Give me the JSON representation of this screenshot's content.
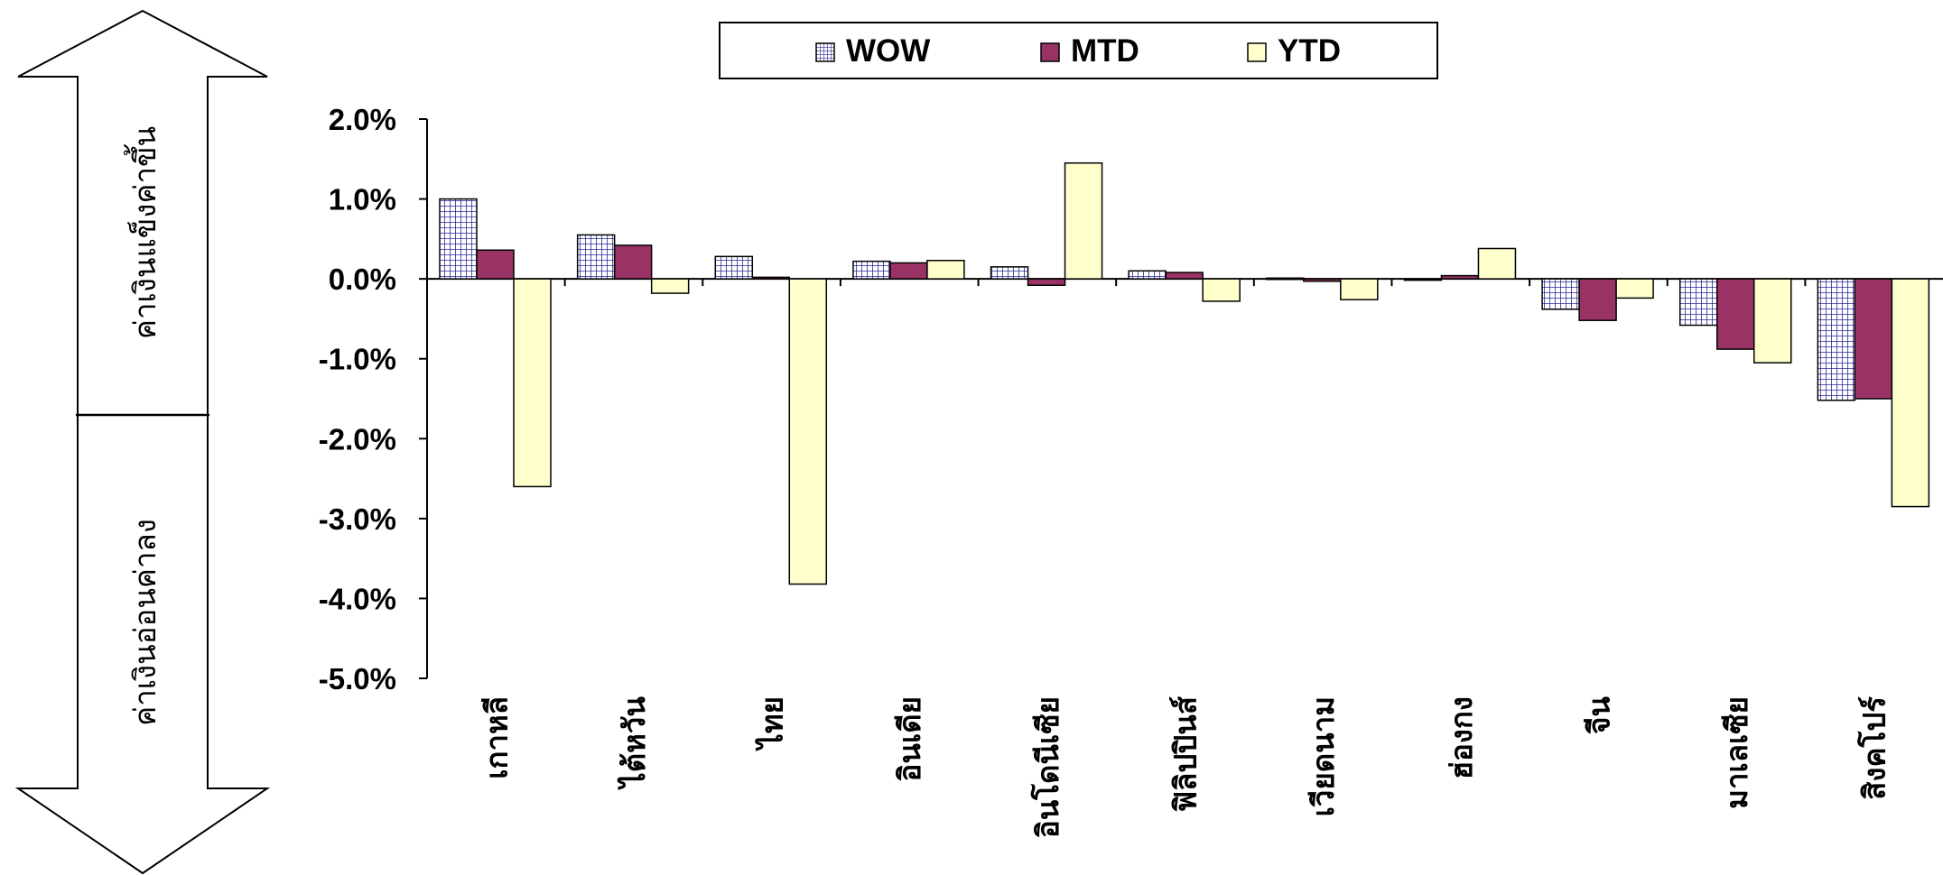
{
  "chart_data": {
    "type": "bar",
    "categories": [
      "เกาหลี",
      "ไต้หวัน",
      "ไทย",
      "อินเดีย",
      "อินโดนีเซีย",
      "ฟิลิปปินส์",
      "เวียดนาม",
      "ฮ่องกง",
      "จีน",
      "มาเลเซีย",
      "สิงคโปร์"
    ],
    "series": [
      {
        "name": "WOW",
        "values": [
          1.0,
          0.55,
          0.28,
          0.22,
          0.15,
          0.1,
          0.01,
          -0.01,
          -0.38,
          -0.58,
          -1.52
        ],
        "color": "#c8c8ff",
        "pattern": "grid"
      },
      {
        "name": "MTD",
        "values": [
          0.36,
          0.42,
          0.02,
          0.2,
          -0.08,
          0.08,
          -0.03,
          0.04,
          -0.52,
          -0.88,
          -1.5
        ],
        "color": "#993366",
        "pattern": "solid"
      },
      {
        "name": "YTD",
        "values": [
          -2.6,
          -0.18,
          -3.82,
          0.23,
          1.45,
          -0.28,
          -0.26,
          0.38,
          -0.24,
          -1.05,
          -2.85
        ],
        "color": "#ffffcc",
        "pattern": "solid"
      }
    ],
    "yticks": [
      "2.0%",
      "1.0%",
      "0.0%",
      "-1.0%",
      "-2.0%",
      "-3.0%",
      "-4.0%",
      "-5.0%"
    ],
    "ylim": [
      -5,
      2
    ],
    "legend_position": "top",
    "grid": false
  },
  "arrow": {
    "up_label": "ค่าเงินแข็งค่าขึ้น",
    "down_label": "ค่าเงินอ่อนค่าลง"
  }
}
